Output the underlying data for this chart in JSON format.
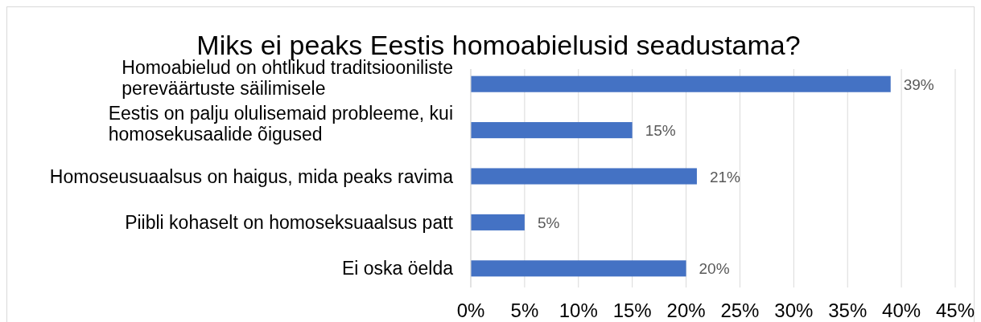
{
  "chart_data": {
    "type": "bar",
    "orientation": "horizontal",
    "title": "Miks ei peaks Eestis homoabielusid seadustama?",
    "categories": [
      "Homoabielud on ohtlikud traditsiooniliste pereväärtuste säilimisele",
      "Eestis on palju olulisemaid probleeme, kui homosekusaalide õigused",
      "Homoseusuaalsus on haigus, mida peaks ravima",
      "Piibli kohaselt on homoseksuaalsus patt",
      "Ei oska öelda"
    ],
    "values": [
      39,
      15,
      21,
      5,
      20
    ],
    "value_labels": [
      "39%",
      "15%",
      "21%",
      "5%",
      "20%"
    ],
    "color": "#4472c4",
    "xlim": [
      0,
      45
    ],
    "xticks": [
      {
        "value": 0,
        "label": "0%"
      },
      {
        "value": 5,
        "label": "5%"
      },
      {
        "value": 10,
        "label": "10%"
      },
      {
        "value": 15,
        "label": "15%"
      },
      {
        "value": 20,
        "label": "20%"
      },
      {
        "value": 25,
        "label": "25%"
      },
      {
        "value": 30,
        "label": "30%"
      },
      {
        "value": 35,
        "label": "35%"
      },
      {
        "value": 40,
        "label": "40%"
      },
      {
        "value": 45,
        "label": "45%"
      }
    ],
    "grid": "x"
  }
}
